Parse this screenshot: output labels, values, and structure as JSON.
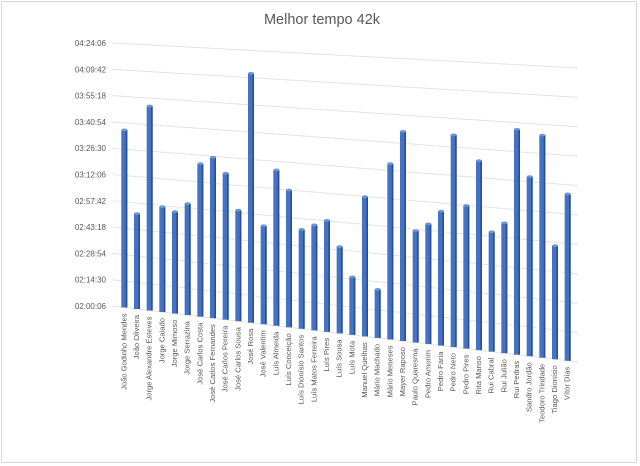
{
  "chart_data": {
    "type": "bar",
    "title": "Melhor tempo 42k",
    "xlabel": "",
    "ylabel": "",
    "y_unit": "h:mm:ss",
    "y_ticks": [
      "02:00:06",
      "02:14:30",
      "02:28:54",
      "02:43:18",
      "02:57:42",
      "03:12:06",
      "03:26:30",
      "03:40:54",
      "03:55:18",
      "04:09:42",
      "04:24:06"
    ],
    "ylim": [
      "02:00:06",
      "04:24:06"
    ],
    "grid": true,
    "legend": "none",
    "bar_color": "#4472c4",
    "categories": [
      "João Godinho Mendes",
      "João Oliveira",
      "Jorge Alexandre Esteves",
      "Jorge Caiado",
      "Jorge Mimoso",
      "Jorge Serrazina",
      "José Carlos Costa",
      "José Carlos Fernandes",
      "José Carlos Pereira",
      "José Carlos Sousa",
      "José Rosa",
      "José Valentim",
      "Luís Almeida",
      "Luís Conceição",
      "Luís Dionísio Santos",
      "Luís Matos Ferreira",
      "Luís Pires",
      "Luís Sousa",
      "Luís Mota",
      "Manuel Quelhas",
      "Mário Machado",
      "Mário Meneses",
      "Mayer Raposo",
      "Paulo Quaresma",
      "Pedro Amorim",
      "Pedro Faria",
      "Pedro Neto",
      "Pedro Pires",
      "Rita Manso",
      "Rui Cabral",
      "Rui Julião",
      "Rui Pedras",
      "Sandro Jordão",
      "Teodoro Trindade",
      "Tiago Dionísio",
      "Vítor Dias"
    ],
    "values": [
      "03:37:00",
      "02:52:00",
      "03:51:00",
      "02:57:00",
      "02:55:00",
      "03:00:00",
      "03:22:00",
      "03:26:00",
      "03:18:00",
      "02:59:00",
      "04:12:00",
      "02:52:00",
      "03:22:00",
      "03:12:00",
      "02:52:00",
      "02:55:00",
      "02:58:00",
      "02:45:00",
      "02:30:00",
      "03:12:00",
      "02:25:00",
      "03:30:00",
      "03:47:00",
      "02:57:00",
      "03:01:00",
      "03:08:00",
      "03:47:00",
      "03:12:00",
      "03:35:00",
      "03:00:00",
      "03:05:00",
      "03:52:00",
      "03:29:00",
      "03:50:00",
      "02:56:00",
      "03:22:00"
    ]
  }
}
